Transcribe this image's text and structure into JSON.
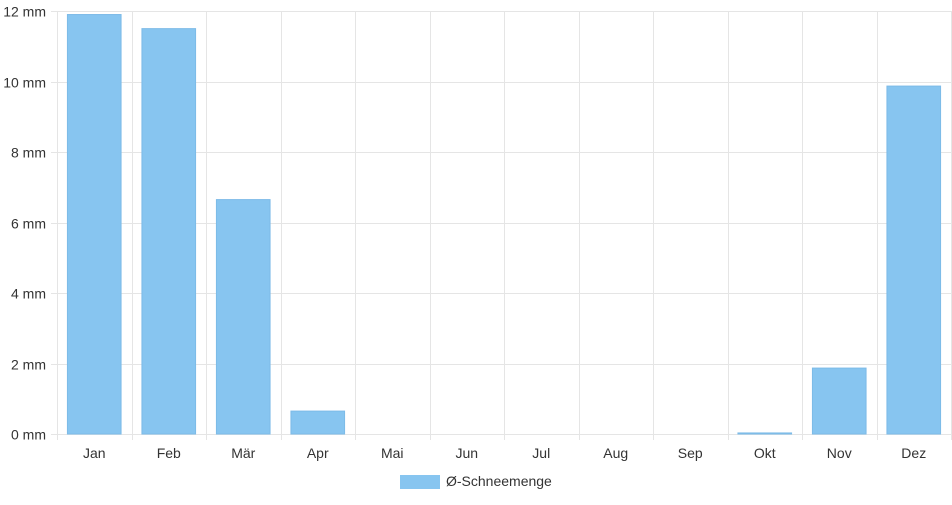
{
  "chart_data": {
    "type": "bar",
    "categories": [
      "Jan",
      "Feb",
      "Mär",
      "Apr",
      "Mai",
      "Jun",
      "Jul",
      "Aug",
      "Sep",
      "Okt",
      "Nov",
      "Dez"
    ],
    "series": [
      {
        "name": "Ø-Schneemenge",
        "color": "#87c5f0",
        "values": [
          11.9,
          11.5,
          6.65,
          0.65,
          0,
          0,
          0,
          0,
          0,
          0.03,
          1.87,
          9.87
        ]
      }
    ],
    "ylim": [
      0,
      12
    ],
    "yticks": [
      {
        "value": 0,
        "label": "0 mm"
      },
      {
        "value": 2,
        "label": "2 mm"
      },
      {
        "value": 4,
        "label": "4 mm"
      },
      {
        "value": 6,
        "label": "6 mm"
      },
      {
        "value": 8,
        "label": "8 mm"
      },
      {
        "value": 10,
        "label": "10 mm"
      },
      {
        "value": 12,
        "label": "12 mm"
      }
    ],
    "grid": true,
    "legend": "bottom-center"
  }
}
